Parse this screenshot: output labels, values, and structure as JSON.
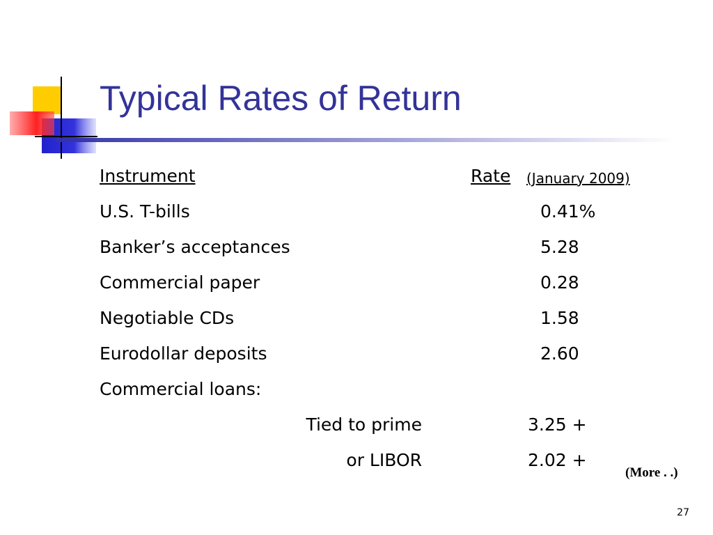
{
  "slide": {
    "title": "Typical Rates of Return",
    "header": {
      "instrument": "Instrument",
      "rate": "Rate",
      "rate_note": "(January 2009)"
    },
    "rows": [
      {
        "label": "U.S. T-bills",
        "rate": "0.41%"
      },
      {
        "label": "Banker’s acceptances",
        "rate": "5.28"
      },
      {
        "label": "Commercial paper",
        "rate": "0.28"
      },
      {
        "label": "Negotiable CDs",
        "rate": "1.58"
      },
      {
        "label": "Eurodollar deposits",
        "rate": "2.60"
      },
      {
        "label": "Commercial loans:"
      }
    ],
    "sub_rows": [
      {
        "label": "Tied to prime",
        "rate": "3.25 +"
      },
      {
        "label": "or LIBOR",
        "rate": "2.02 +"
      }
    ],
    "note": "(More . .)",
    "page_number": "27"
  }
}
